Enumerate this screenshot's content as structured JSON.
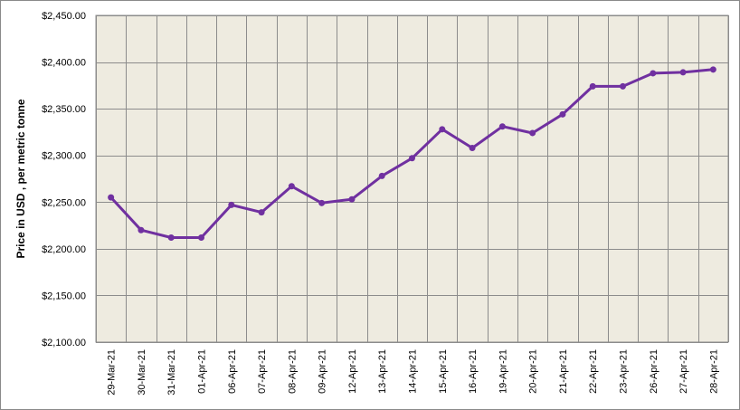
{
  "chart_data": {
    "type": "line",
    "title": "",
    "xlabel": "",
    "ylabel": "Price in USD , per metric tonne",
    "ylim": [
      2100,
      2450
    ],
    "y_ticks": [
      "$2,100.00",
      "$2,150.00",
      "$2,200.00",
      "$2,250.00",
      "$2,300.00",
      "$2,350.00",
      "$2,400.00",
      "$2,450.00"
    ],
    "y_tick_values": [
      2100,
      2150,
      2200,
      2250,
      2300,
      2350,
      2400,
      2450
    ],
    "categories": [
      "29-Mar-21",
      "30-Mar-21",
      "31-Mar-21",
      "01-Apr-21",
      "06-Apr-21",
      "07-Apr-21",
      "08-Apr-21",
      "09-Apr-21",
      "12-Apr-21",
      "13-Apr-21",
      "14-Apr-21",
      "15-Apr-21",
      "16-Apr-21",
      "19-Apr-21",
      "20-Apr-21",
      "21-Apr-21",
      "22-Apr-21",
      "23-Apr-21",
      "26-Apr-21",
      "27-Apr-21",
      "28-Apr-21"
    ],
    "series": [
      {
        "values": [
          2255,
          2220,
          2212,
          2212,
          2247,
          2239,
          2267,
          2249,
          2253,
          2278,
          2297,
          2328,
          2308,
          2331,
          2324,
          2344,
          2374,
          2374,
          2388,
          2389,
          2392
        ],
        "color": "#7030a0"
      }
    ],
    "grid": true,
    "plot_background": "#eeebe0",
    "grid_color": "#8c8c8c",
    "legend": "none"
  }
}
